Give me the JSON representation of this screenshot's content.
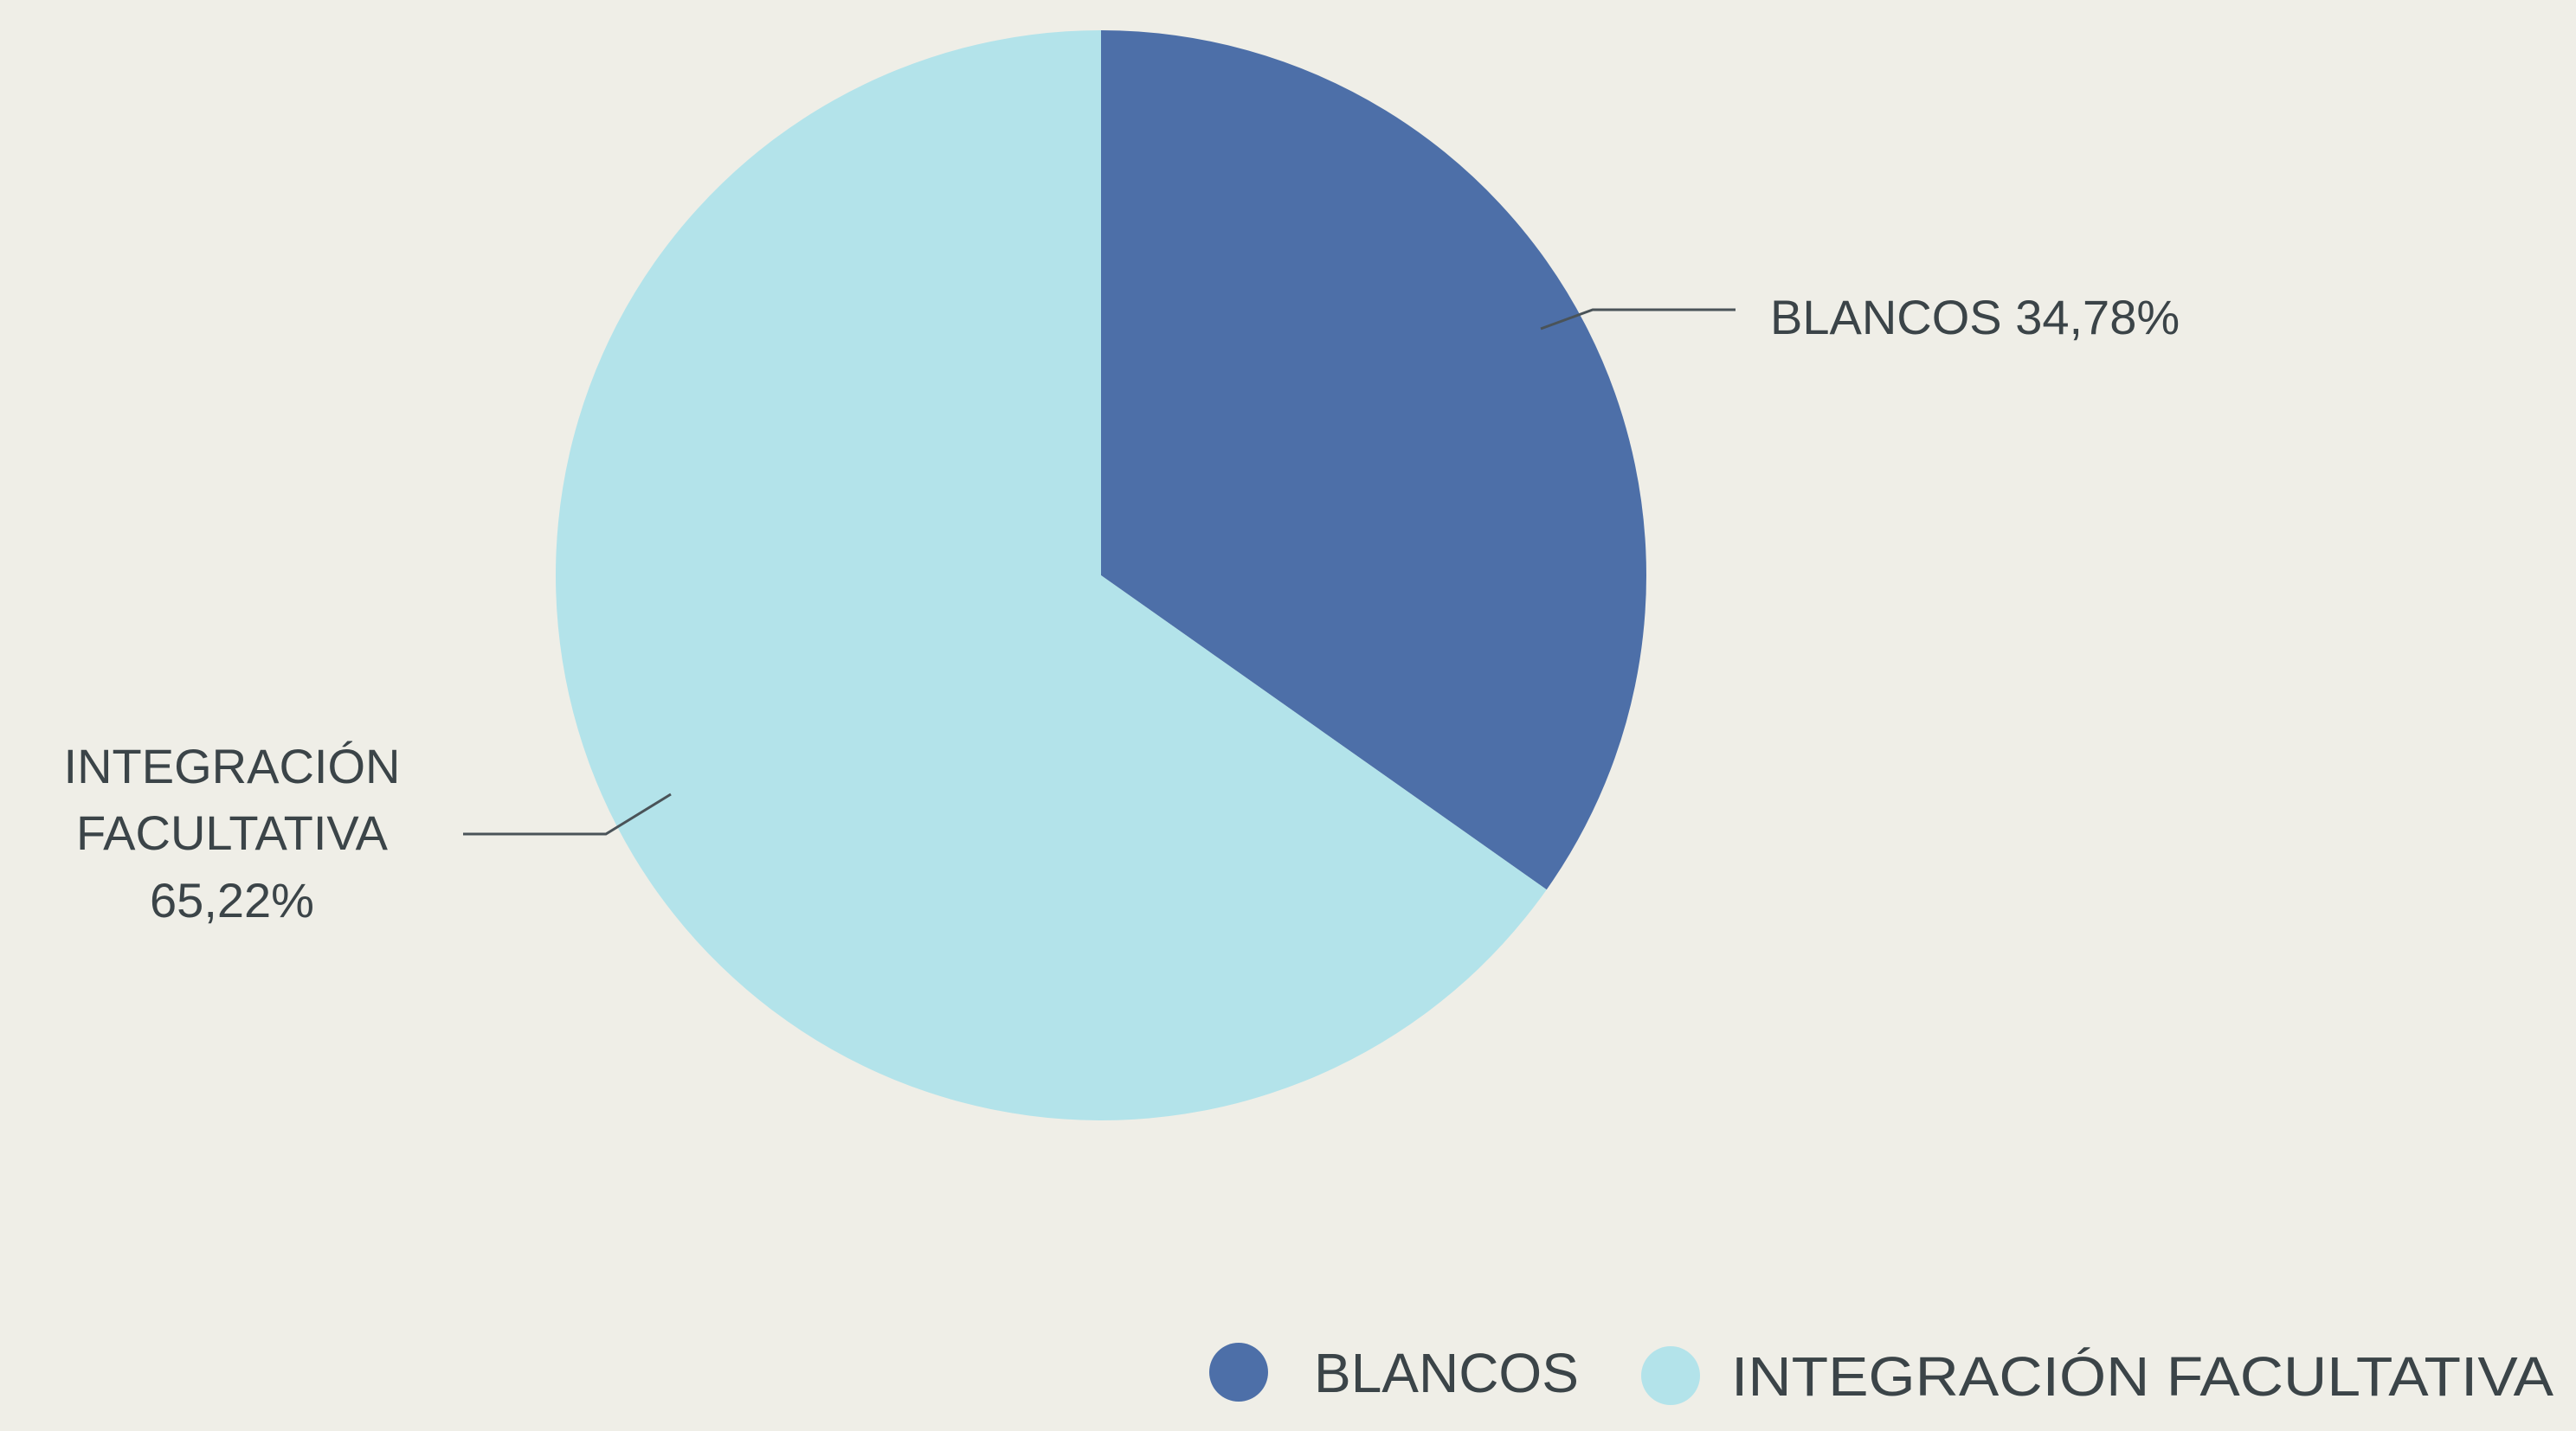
{
  "chart_data": {
    "type": "pie",
    "title": "",
    "slices": [
      {
        "name": "BLANCOS",
        "value": 34.78,
        "display": "34,78%",
        "color": "#4d6fa8"
      },
      {
        "name": "INTEGRACIÓN FACULTATIVA",
        "value": 65.22,
        "display": "65,22%",
        "color": "#b3e3ea"
      }
    ],
    "data_labels": {
      "blancos": "BLANCOS 34,78%",
      "integracion_line1": "INTEGRACIÓN",
      "integracion_line2": "FACULTATIVA",
      "integracion_line3": "65,22%"
    },
    "legend": {
      "position": "bottom-right",
      "items": [
        "BLANCOS",
        "INTEGRACIÓN FACULTATIVA"
      ]
    },
    "leader_color": "#4a5358"
  }
}
